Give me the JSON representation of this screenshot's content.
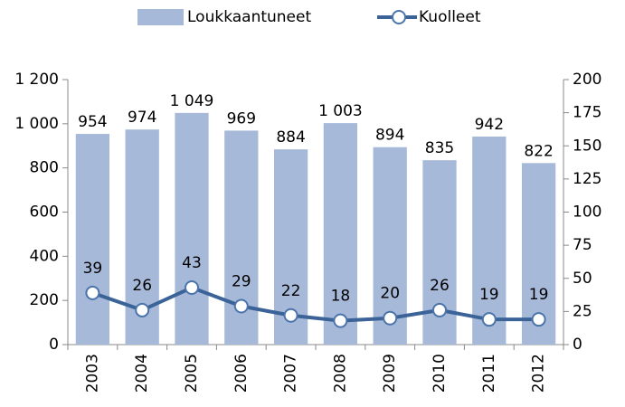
{
  "chart_data": {
    "type": "bar",
    "categories": [
      "2003",
      "2004",
      "2005",
      "2006",
      "2007",
      "2008",
      "2009",
      "2010",
      "2011",
      "2012"
    ],
    "series": [
      {
        "name": "Loukkaantuneet",
        "type": "bar",
        "color": "#a7b9d9",
        "axis": "y",
        "values": [
          954,
          974,
          1049,
          969,
          884,
          1003,
          894,
          835,
          942,
          822
        ],
        "value_labels": [
          "954",
          "974",
          "1 049",
          "969",
          "884",
          "1 003",
          "894",
          "835",
          "942",
          "822"
        ]
      },
      {
        "name": "Kuolleet",
        "type": "line",
        "color": "#3b6398",
        "axis": "y2",
        "values": [
          39,
          26,
          43,
          29,
          22,
          18,
          20,
          26,
          19,
          19
        ]
      }
    ],
    "ylim": [
      0,
      1200
    ],
    "yticks": [
      0,
      200,
      400,
      600,
      800,
      {
        "value": 1000,
        "label": "1 000"
      },
      {
        "value": 1200,
        "label": "1 200"
      }
    ],
    "y2lim": [
      0,
      200
    ],
    "y2ticks": [
      0,
      25,
      50,
      75,
      100,
      125,
      150,
      175,
      200
    ],
    "grid": false,
    "legend": "top"
  }
}
